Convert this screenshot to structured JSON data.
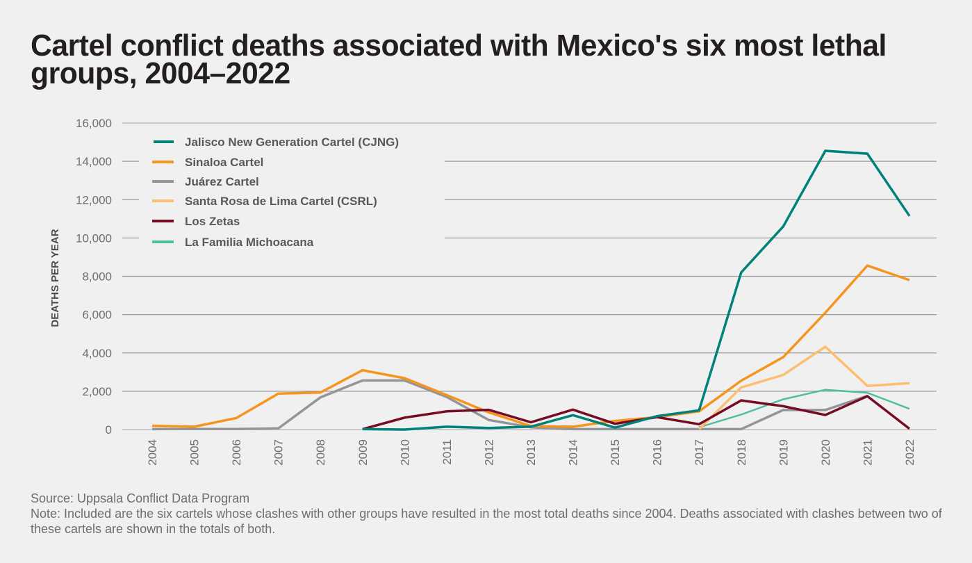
{
  "title": "Cartel conflict deaths associated with Mexico's six most lethal groups, 2004–2022",
  "footer": {
    "source": "Source: Uppsala Conflict Data Program",
    "note": "Note: Included are the six cartels whose clashes with other groups have resulted in the most total deaths since 2004. Deaths associated with clashes between two of these cartels are shown in the totals of both."
  },
  "chart_data": {
    "type": "line",
    "title": "Cartel conflict deaths associated with Mexico's six most lethal groups, 2004–2022",
    "xlabel": "",
    "ylabel": "DEATHS PER YEAR",
    "ylim": [
      0,
      16000
    ],
    "yticks": [
      0,
      2000,
      4000,
      6000,
      8000,
      10000,
      12000,
      14000,
      16000
    ],
    "ytick_labels": [
      "0",
      "2,000",
      "4,000",
      "6,000",
      "8,000",
      "10,000",
      "12,000",
      "14,000",
      "16,000"
    ],
    "grid": true,
    "legend_position": "top-left",
    "x": [
      2004,
      2005,
      2006,
      2007,
      2008,
      2009,
      2010,
      2011,
      2012,
      2013,
      2014,
      2015,
      2016,
      2017,
      2018,
      2019,
      2020,
      2021,
      2022
    ],
    "x_labels": [
      "2004",
      "2005",
      "2006",
      "2007",
      "2008",
      "2009",
      "2010",
      "2011",
      "2012",
      "2013",
      "2014",
      "2015",
      "2016",
      "2017",
      "2018",
      "2019",
      "2020",
      "2021",
      "2022"
    ],
    "series": [
      {
        "name": "Jalisco New Generation Cartel (CJNG)",
        "color": "#00817a",
        "width": 3.5,
        "values": [
          null,
          null,
          null,
          null,
          null,
          20,
          0,
          150,
          80,
          150,
          750,
          100,
          700,
          1000,
          8200,
          10600,
          14550,
          14400,
          11150
        ]
      },
      {
        "name": "Sinaloa Cartel",
        "color": "#f7941d",
        "width": 3.5,
        "values": [
          200,
          150,
          600,
          1880,
          1930,
          3100,
          2680,
          1800,
          900,
          180,
          150,
          450,
          650,
          950,
          2550,
          3780,
          6100,
          8560,
          7800
        ]
      },
      {
        "name": "Juárez Cartel",
        "color": "#939598",
        "width": 3.5,
        "values": [
          20,
          30,
          30,
          60,
          1680,
          2560,
          2560,
          1700,
          500,
          120,
          20,
          20,
          20,
          20,
          20,
          1020,
          1020,
          1760,
          null
        ]
      },
      {
        "name": "Santa Rosa de Lima Cartel (CSRL)",
        "color": "#fdbf6f",
        "width": 3.5,
        "values": [
          null,
          null,
          null,
          null,
          null,
          null,
          null,
          null,
          null,
          null,
          null,
          null,
          null,
          20,
          2200,
          2850,
          4320,
          2280,
          2420
        ]
      },
      {
        "name": "Los Zetas",
        "color": "#760c23",
        "width": 3.5,
        "values": [
          null,
          null,
          null,
          null,
          null,
          20,
          620,
          950,
          1030,
          380,
          1040,
          300,
          650,
          280,
          1520,
          1220,
          760,
          1740,
          40
        ]
      },
      {
        "name": "La Familia Michoacana",
        "color": "#4dbf9f",
        "width": 2.5,
        "values": [
          null,
          null,
          null,
          null,
          null,
          null,
          null,
          null,
          null,
          null,
          null,
          null,
          null,
          120,
          780,
          1580,
          2080,
          1920,
          1080
        ]
      }
    ]
  }
}
